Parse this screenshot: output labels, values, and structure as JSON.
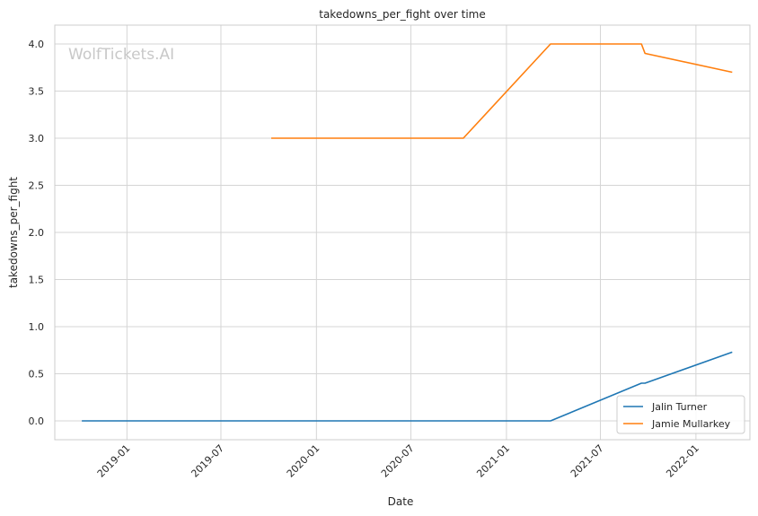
{
  "chart_data": {
    "type": "line",
    "title": "takedowns_per_fight over time",
    "xlabel": "Date",
    "ylabel": "takedowns_per_fight",
    "watermark": "WolfTickets.AI",
    "xlim": [
      "2018-08-15",
      "2022-04-15"
    ],
    "ylim": [
      -0.2,
      4.2
    ],
    "x_ticks": [
      "2019-01-01",
      "2019-07-01",
      "2020-01-01",
      "2020-07-01",
      "2021-01-01",
      "2021-07-01",
      "2022-01-01"
    ],
    "x_tick_labels": [
      "2019-01",
      "2019-07",
      "2020-01",
      "2020-07",
      "2021-01",
      "2021-07",
      "2022-01"
    ],
    "y_ticks": [
      0.0,
      0.5,
      1.0,
      1.5,
      2.0,
      2.5,
      3.0,
      3.5,
      4.0
    ],
    "y_tick_labels": [
      "0.0",
      "0.5",
      "1.0",
      "1.5",
      "2.0",
      "2.5",
      "3.0",
      "3.5",
      "4.0"
    ],
    "grid": true,
    "legend_position": "bottom-right",
    "series": [
      {
        "name": "Jalin Turner",
        "color": "#1f77b4",
        "points": [
          {
            "x": "2018-10-06",
            "y": 0.0
          },
          {
            "x": "2021-03-27",
            "y": 0.0
          },
          {
            "x": "2021-09-18",
            "y": 0.4
          },
          {
            "x": "2021-09-25",
            "y": 0.4
          },
          {
            "x": "2022-03-12",
            "y": 0.73
          }
        ]
      },
      {
        "name": "Jamie Mullarkey",
        "color": "#ff7f0e",
        "points": [
          {
            "x": "2019-10-06",
            "y": 3.0
          },
          {
            "x": "2020-10-10",
            "y": 3.0
          },
          {
            "x": "2021-03-27",
            "y": 4.0
          },
          {
            "x": "2021-09-18",
            "y": 4.0
          },
          {
            "x": "2021-09-25",
            "y": 3.9
          },
          {
            "x": "2022-03-12",
            "y": 3.7
          }
        ]
      }
    ]
  }
}
